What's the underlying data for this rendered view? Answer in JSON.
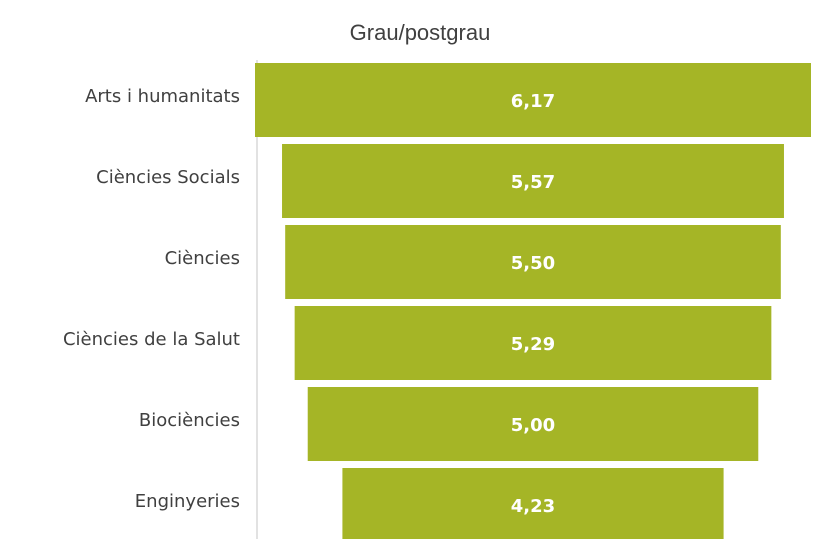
{
  "chart_data": {
    "type": "funnel",
    "title": "Grau/postgrau",
    "categories": [
      "Arts i humanitats",
      "Ciències Socials",
      "Ciències",
      "Ciències de la Salut",
      "Biociències",
      "Enginyeries"
    ],
    "values": [
      6.17,
      5.57,
      5.5,
      5.29,
      5.0,
      4.23
    ],
    "value_labels": [
      "6,17",
      "5,57",
      "5,50",
      "5,29",
      "5,00",
      "4,23"
    ],
    "color": "#a5b526"
  }
}
